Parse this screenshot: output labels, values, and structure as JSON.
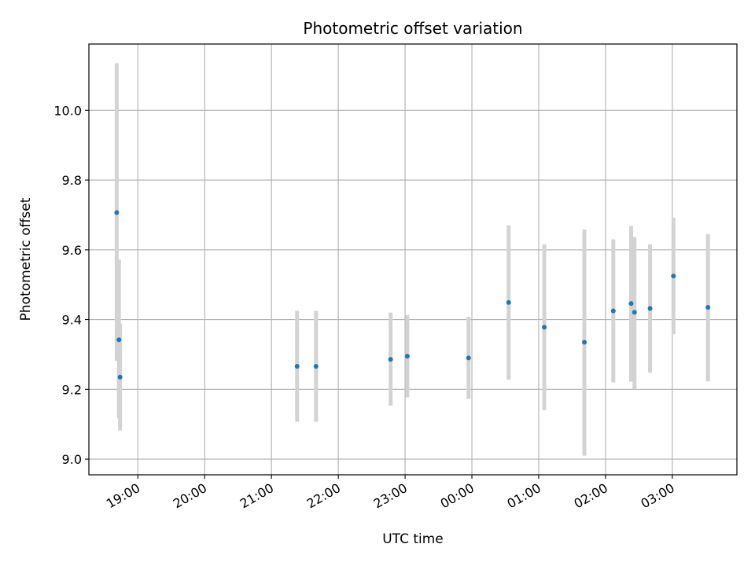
{
  "chart_data": {
    "type": "scatter",
    "title": "Photometric offset variation",
    "xlabel": "UTC time",
    "ylabel": "Photometric offset",
    "x_ticks": [
      "19:00",
      "20:00",
      "21:00",
      "22:00",
      "23:00",
      "00:00",
      "01:00",
      "02:00",
      "03:00"
    ],
    "y_ticks": [
      "9.0",
      "9.2",
      "9.4",
      "9.6",
      "9.8",
      "10.0"
    ],
    "xlim": [
      "18:16",
      "03:58"
    ],
    "ylim": [
      8.955,
      10.19
    ],
    "grid": true,
    "marker_color": "#1f77b4",
    "errorbar_color": "#d3d3d3",
    "series": [
      {
        "x": [
          "18:41",
          "18:43",
          "18:44",
          "21:23",
          "21:40",
          "22:47",
          "23:02",
          "23:57",
          "00:33",
          "01:05",
          "01:41",
          "02:07",
          "02:23",
          "02:26",
          "02:40",
          "03:01",
          "03:32"
        ],
        "y": [
          9.707,
          9.342,
          9.235,
          9.266,
          9.266,
          9.286,
          9.295,
          9.29,
          9.449,
          9.378,
          9.335,
          9.425,
          9.446,
          9.421,
          9.432,
          9.525,
          9.435
        ],
        "yerr_low": [
          9.282,
          9.117,
          9.082,
          9.107,
          9.107,
          9.153,
          9.177,
          9.173,
          9.228,
          9.14,
          9.01,
          9.22,
          9.222,
          9.2,
          9.248,
          9.358,
          9.223
        ],
        "yerr_high": [
          10.135,
          9.572,
          9.388,
          9.425,
          9.425,
          9.42,
          9.413,
          9.408,
          9.67,
          9.616,
          9.658,
          9.63,
          9.668,
          9.637,
          9.616,
          9.692,
          9.645
        ]
      }
    ]
  }
}
